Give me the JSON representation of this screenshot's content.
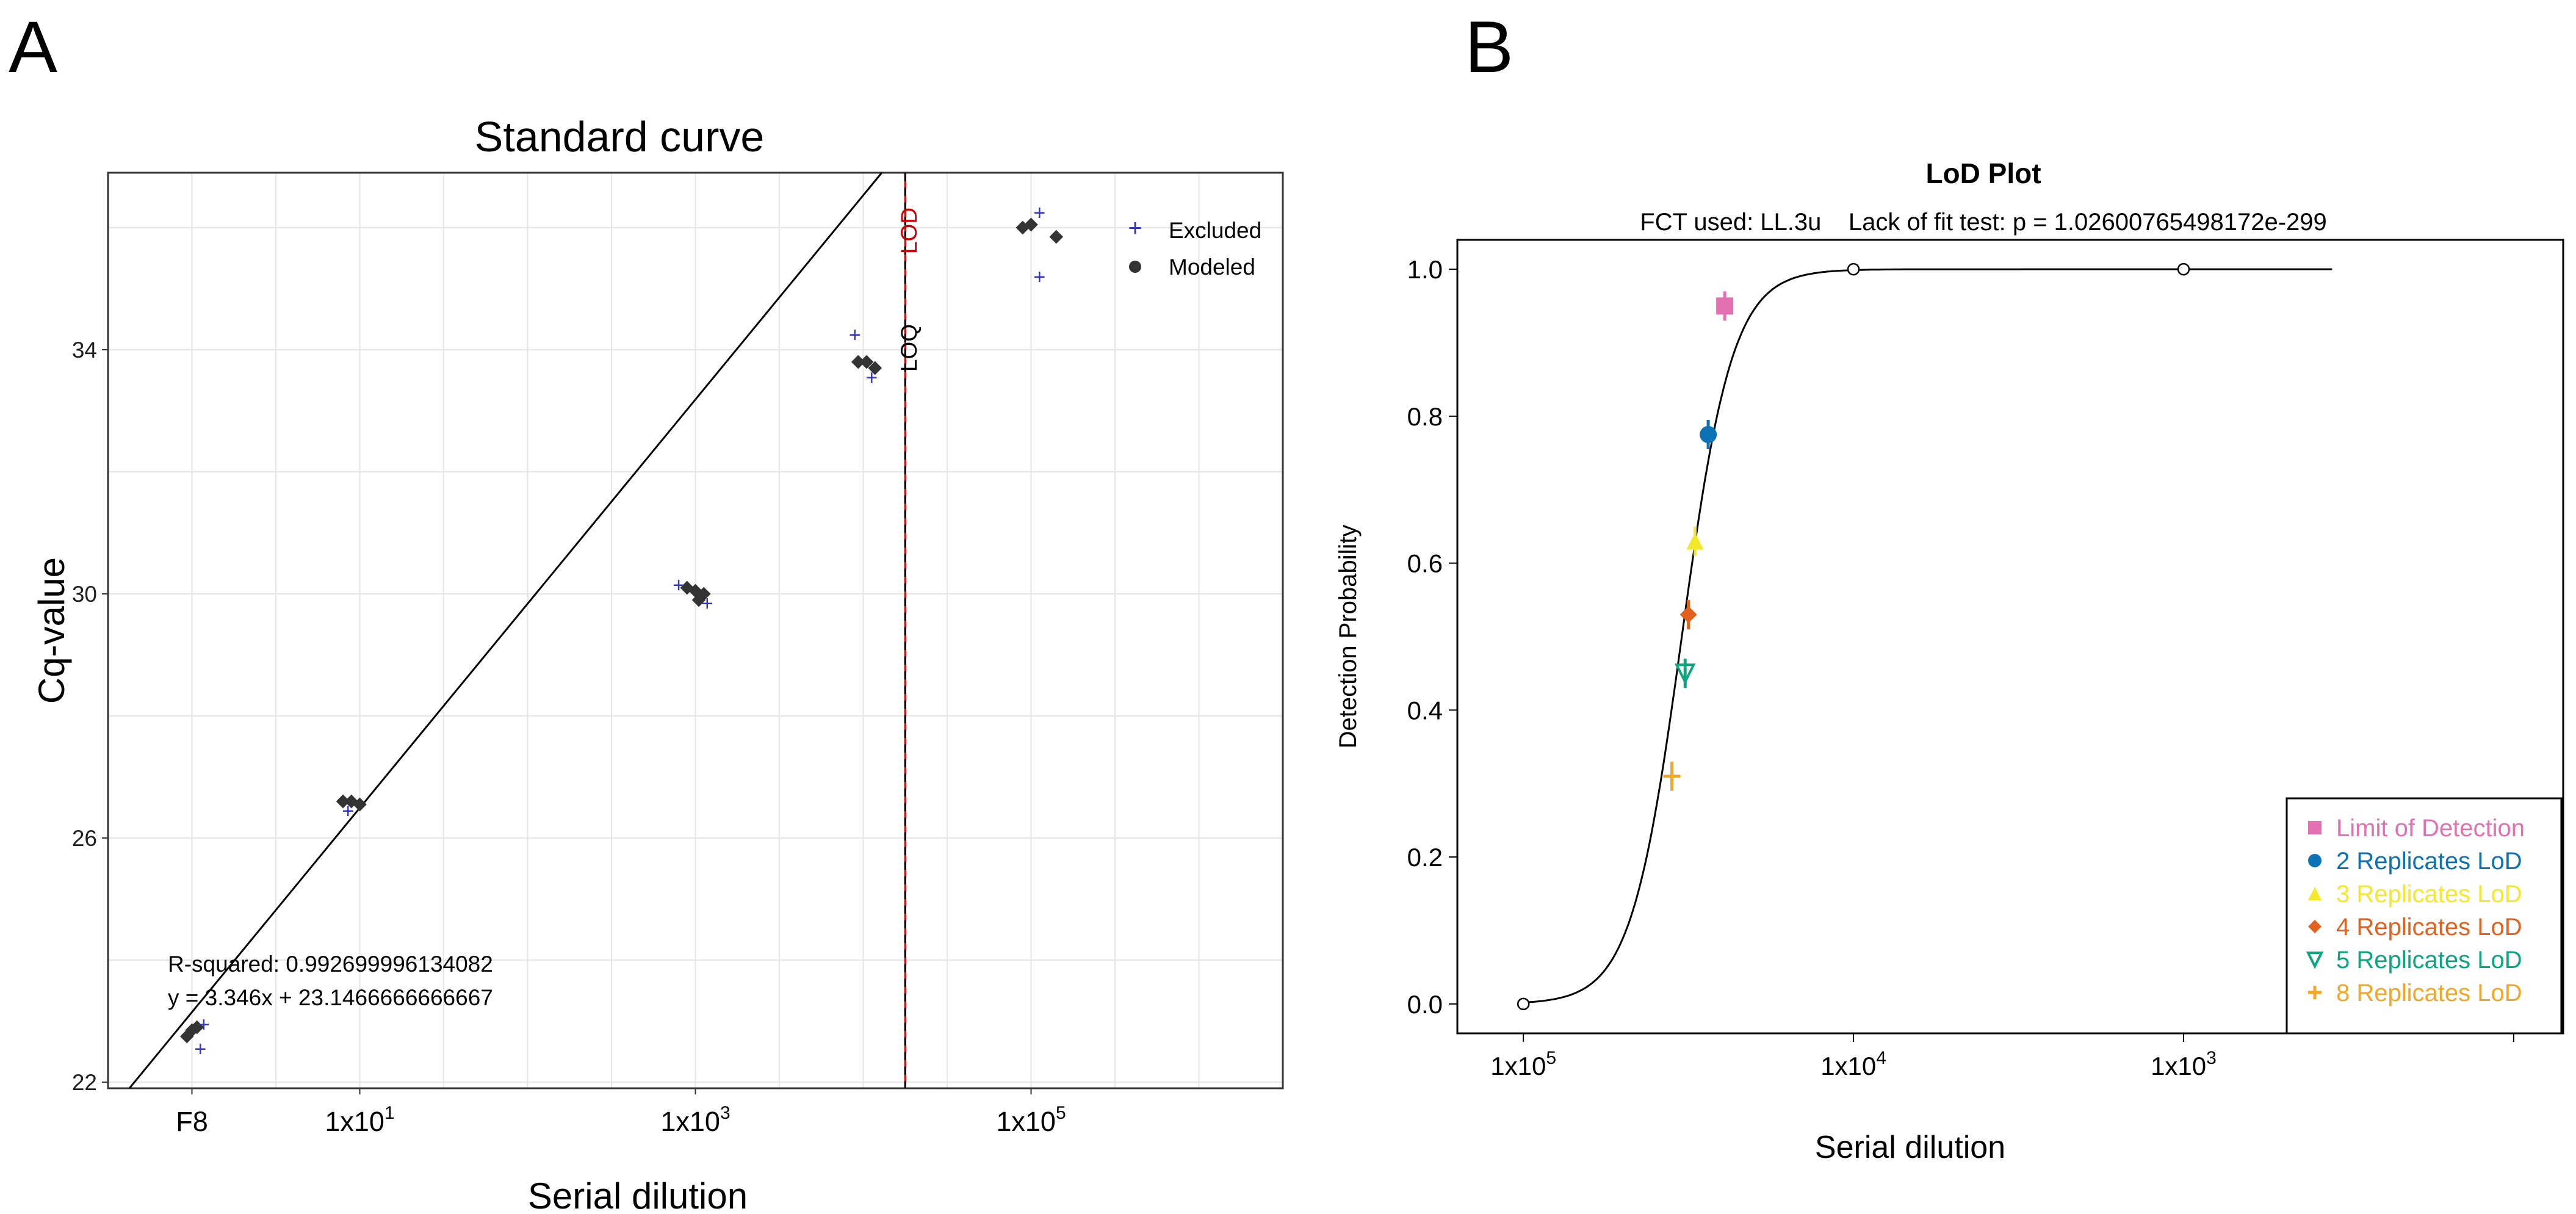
{
  "panel_a_label": "A",
  "panel_b_label": "B",
  "chart_data": [
    {
      "type": "scatter",
      "title": "Standard curve",
      "xlabel": "Serial dilution",
      "ylabel": "Cq-value",
      "x_scale": "log10",
      "xlim": [
        -0.5,
        6.5
      ],
      "ylim": [
        21.9,
        36.9
      ],
      "x_ticks": [
        {
          "value": 0,
          "label": "F8"
        },
        {
          "value": 1,
          "label": "1x10"
        },
        {
          "value": 3,
          "label": "1x10"
        },
        {
          "value": 5,
          "label": "1x10"
        }
      ],
      "x_tick_exponents": [
        "",
        "1",
        "3",
        "5"
      ],
      "y_ticks": [
        22,
        26,
        30,
        34
      ],
      "grid": true,
      "legend": {
        "position": "top-right",
        "entries": [
          "Excluded",
          "Modeled"
        ]
      },
      "fit": {
        "slope": 3.346,
        "intercept": 23.1466666666667
      },
      "annotation_r2": "R-squared: 0.992699996134082",
      "annotation_eq": "y = 3.346x + 23.1466666666667",
      "lod_label": "LOD",
      "loq_label": "LOQ",
      "lod_x": 4.25,
      "series": [
        {
          "name": "Modeled",
          "points": [
            [
              -0.03,
              22.75
            ],
            [
              0.0,
              22.85
            ],
            [
              0.03,
              22.9
            ],
            [
              0.9,
              26.6
            ],
            [
              0.95,
              26.6
            ],
            [
              1.0,
              26.55
            ],
            [
              2.95,
              30.1
            ],
            [
              3.0,
              30.05
            ],
            [
              3.05,
              30.0
            ],
            [
              3.02,
              29.9
            ],
            [
              3.97,
              33.8
            ],
            [
              4.02,
              33.8
            ],
            [
              4.07,
              33.7
            ],
            [
              4.95,
              36.0
            ],
            [
              5.0,
              36.05
            ],
            [
              5.15,
              35.85
            ]
          ]
        },
        {
          "name": "Excluded",
          "points": [
            [
              0.05,
              22.55
            ],
            [
              0.07,
              22.95
            ],
            [
              0.93,
              26.45
            ],
            [
              2.9,
              30.15
            ],
            [
              3.07,
              29.85
            ],
            [
              3.95,
              34.25
            ],
            [
              4.05,
              33.55
            ],
            [
              5.05,
              36.25
            ],
            [
              5.05,
              35.2
            ]
          ]
        }
      ]
    },
    {
      "type": "line",
      "title": "LoD Plot",
      "subtitle": "FCT used: LL.3u    Lack of fit test: p = 1.02600765498172e-299",
      "xlabel": "Serial dilution",
      "ylabel": "Detection Probability",
      "xlim": [
        -5.2,
        -1.85
      ],
      "ylim": [
        -0.04,
        1.04
      ],
      "x_ticks": [
        {
          "value": -5,
          "label": "1x10"
        },
        {
          "value": -4,
          "label": "1x10"
        },
        {
          "value": -3,
          "label": "1x10"
        }
      ],
      "x_tick_exponents": [
        "5",
        "4",
        "3"
      ],
      "y_ticks": [
        0.0,
        0.2,
        0.4,
        0.6,
        0.8,
        1.0
      ],
      "y_tick_labels": [
        "0.0",
        "0.2",
        "0.4",
        "0.6",
        "0.8",
        "1.0"
      ],
      "curve": {
        "model": "logistic",
        "midpoint": -4.52,
        "slope": 13.0
      },
      "observed_points": [
        [
          -5.0,
          0.0
        ],
        [
          -4.0,
          1.0
        ],
        [
          -3.0,
          1.0
        ]
      ],
      "curve_x_end": -2.55,
      "legend": {
        "position": "bottom-right"
      },
      "markers": [
        {
          "name": "Limit of Detection",
          "x": -4.39,
          "y": 0.95,
          "shape": "square",
          "color": "#e371b2"
        },
        {
          "name": "2 Replicates LoD",
          "x": -4.44,
          "y": 0.775,
          "shape": "circle",
          "color": "#0a72b5"
        },
        {
          "name": "3 Replicates LoD",
          "x": -4.48,
          "y": 0.63,
          "shape": "triangle",
          "color": "#f4e82a"
        },
        {
          "name": "4 Replicates LoD",
          "x": -4.5,
          "y": 0.53,
          "shape": "diamond",
          "color": "#e3611d"
        },
        {
          "name": "5 Replicates LoD",
          "x": -4.51,
          "y": 0.45,
          "shape": "triangle-down",
          "color": "#0aa680"
        },
        {
          "name": "8 Replicates LoD",
          "x": -4.55,
          "y": 0.31,
          "shape": "plus",
          "color": "#f5a623"
        }
      ]
    }
  ]
}
